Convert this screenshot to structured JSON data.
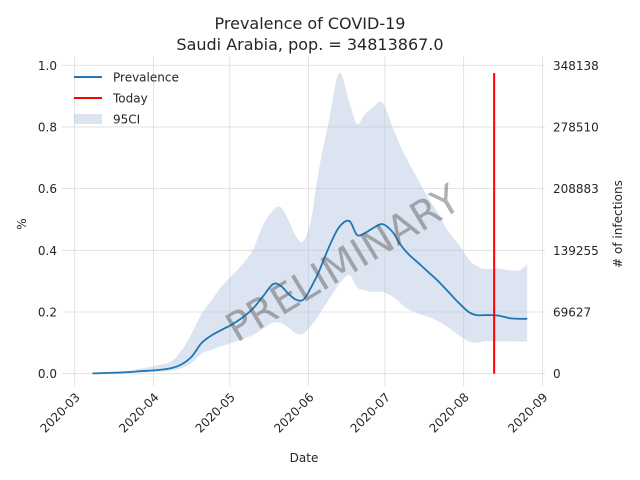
{
  "chart_data": {
    "type": "line",
    "title": "Prevalence of COVID-19",
    "subtitle": "Saudi Arabia, pop. = 34813867.0",
    "xlabel": "Date",
    "ylabel": "%",
    "ylabel_right": "# of infections",
    "x_ticks": [
      "2020-03",
      "2020-04",
      "2020-05",
      "2020-06",
      "2020-07",
      "2020-08",
      "2020-09"
    ],
    "y_ticks": [
      "0.0",
      "0.2",
      "0.4",
      "0.6",
      "0.8",
      "1.0"
    ],
    "y_ticks_right": [
      "0",
      "69627",
      "139255",
      "208883",
      "278510",
      "348138"
    ],
    "xlim": [
      "2020-02-25",
      "2020-09-02"
    ],
    "ylim": [
      -0.04,
      1.03
    ],
    "grid": true,
    "legend_position": "top-left",
    "legend": [
      "Prevalence",
      "Today",
      "95CI"
    ],
    "colors": {
      "prevalence": "#1f77b4",
      "today": "#ff0000",
      "ci": "#b0c4de"
    },
    "watermark": "PRELIMINARY",
    "today": "2020-08-13",
    "series": [
      {
        "name": "Prevalence",
        "x": [
          "2020-03-08",
          "2020-03-20",
          "2020-03-27",
          "2020-04-03",
          "2020-04-08",
          "2020-04-12",
          "2020-04-16",
          "2020-04-20",
          "2020-04-24",
          "2020-04-28",
          "2020-05-02",
          "2020-05-06",
          "2020-05-10",
          "2020-05-14",
          "2020-05-18",
          "2020-05-21",
          "2020-05-24",
          "2020-05-27",
          "2020-05-30",
          "2020-06-02",
          "2020-06-05",
          "2020-06-09",
          "2020-06-13",
          "2020-06-17",
          "2020-06-20",
          "2020-06-23",
          "2020-06-26",
          "2020-06-30",
          "2020-07-04",
          "2020-07-07",
          "2020-07-10",
          "2020-07-14",
          "2020-07-18",
          "2020-07-22",
          "2020-07-26",
          "2020-07-30",
          "2020-08-03",
          "2020-08-06",
          "2020-08-09",
          "2020-08-12",
          "2020-08-15",
          "2020-08-19",
          "2020-08-23",
          "2020-08-26"
        ],
        "values": [
          0.001,
          0.004,
          0.008,
          0.012,
          0.018,
          0.03,
          0.055,
          0.1,
          0.125,
          0.143,
          0.16,
          0.182,
          0.21,
          0.25,
          0.29,
          0.285,
          0.26,
          0.24,
          0.24,
          0.28,
          0.33,
          0.41,
          0.475,
          0.495,
          0.45,
          0.455,
          0.47,
          0.485,
          0.46,
          0.42,
          0.39,
          0.36,
          0.33,
          0.3,
          0.265,
          0.23,
          0.2,
          0.19,
          0.19,
          0.19,
          0.188,
          0.18,
          0.178,
          0.178
        ]
      },
      {
        "name": "95CI",
        "x": [
          "2020-03-08",
          "2020-03-20",
          "2020-03-27",
          "2020-04-03",
          "2020-04-08",
          "2020-04-12",
          "2020-04-16",
          "2020-04-20",
          "2020-04-24",
          "2020-04-28",
          "2020-05-02",
          "2020-05-06",
          "2020-05-10",
          "2020-05-14",
          "2020-05-18",
          "2020-05-21",
          "2020-05-24",
          "2020-05-27",
          "2020-05-30",
          "2020-06-02",
          "2020-06-05",
          "2020-06-09",
          "2020-06-13",
          "2020-06-17",
          "2020-06-20",
          "2020-06-23",
          "2020-06-26",
          "2020-06-30",
          "2020-07-04",
          "2020-07-07",
          "2020-07-10",
          "2020-07-14",
          "2020-07-18",
          "2020-07-22",
          "2020-07-26",
          "2020-07-30",
          "2020-08-03",
          "2020-08-06",
          "2020-08-09",
          "2020-08-12",
          "2020-08-15",
          "2020-08-19",
          "2020-08-23",
          "2020-08-26"
        ],
        "lower": [
          0,
          0.002,
          0.004,
          0.006,
          0.01,
          0.018,
          0.035,
          0.065,
          0.078,
          0.09,
          0.1,
          0.112,
          0.125,
          0.145,
          0.165,
          0.165,
          0.15,
          0.13,
          0.13,
          0.155,
          0.19,
          0.24,
          0.29,
          0.32,
          0.28,
          0.27,
          0.265,
          0.265,
          0.25,
          0.23,
          0.21,
          0.195,
          0.185,
          0.17,
          0.15,
          0.125,
          0.105,
          0.1,
          0.105,
          0.105,
          0.105,
          0.105,
          0.104,
          0.104
        ],
        "upper": [
          0.002,
          0.008,
          0.016,
          0.028,
          0.04,
          0.075,
          0.13,
          0.195,
          0.24,
          0.285,
          0.32,
          0.355,
          0.4,
          0.48,
          0.53,
          0.54,
          0.5,
          0.445,
          0.43,
          0.5,
          0.66,
          0.82,
          0.975,
          0.88,
          0.81,
          0.84,
          0.86,
          0.88,
          0.8,
          0.74,
          0.69,
          0.63,
          0.57,
          0.52,
          0.46,
          0.42,
          0.37,
          0.35,
          0.34,
          0.34,
          0.34,
          0.335,
          0.335,
          0.355
        ]
      }
    ]
  }
}
